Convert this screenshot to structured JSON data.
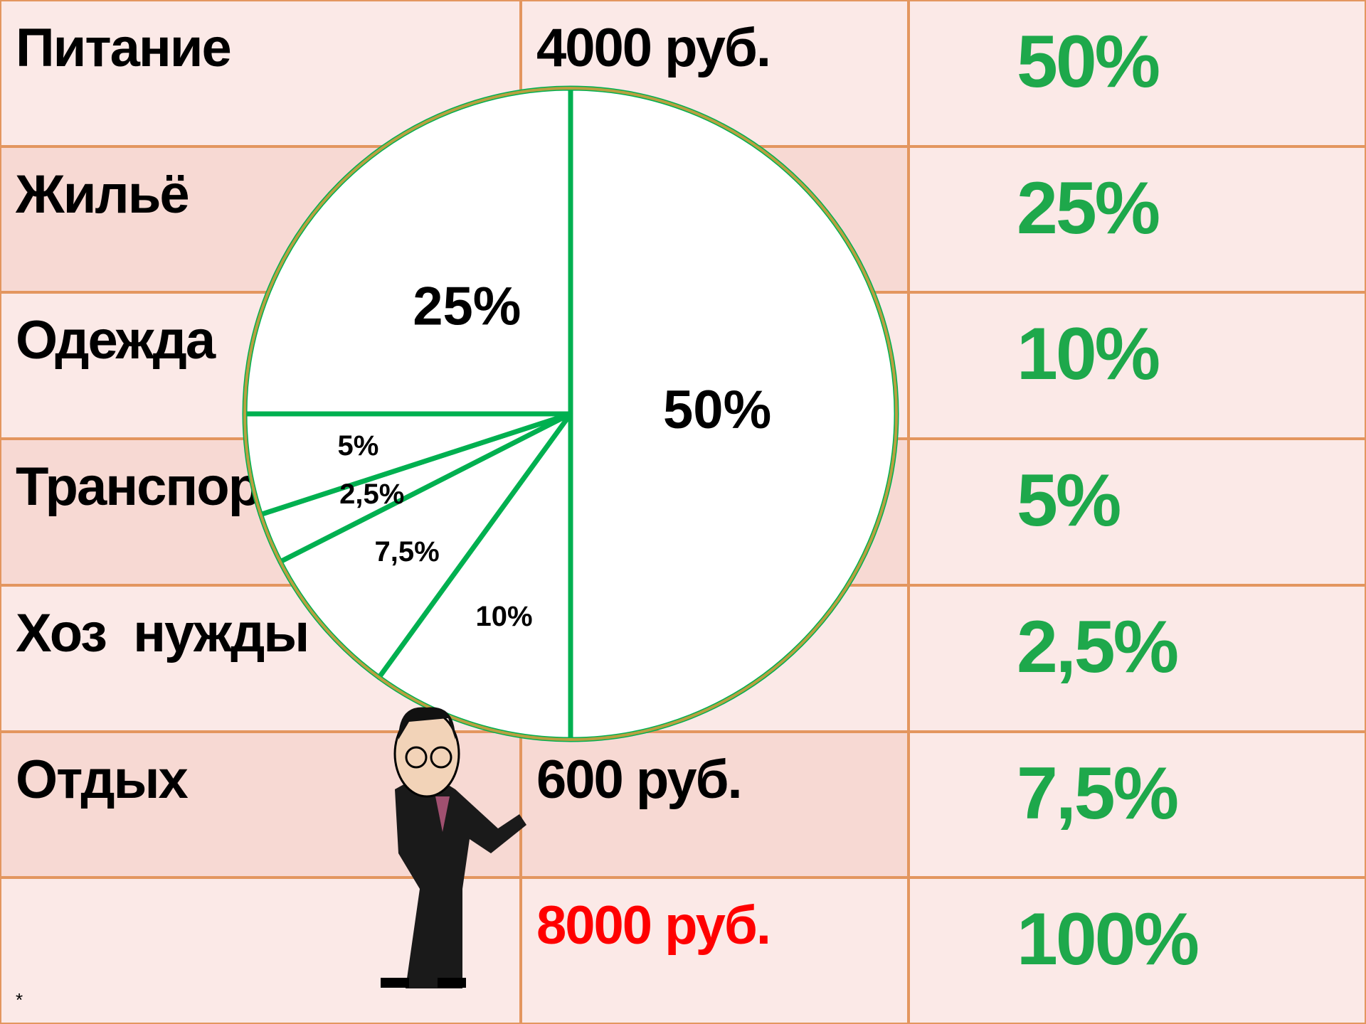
{
  "table": {
    "rows": [
      {
        "name": "Питание",
        "amount": "4000 руб.",
        "percent": "50%"
      },
      {
        "name": "Жильё",
        "percent": "25%"
      },
      {
        "name": "Одежда",
        "percent": "10%"
      },
      {
        "name": "Транспорт",
        "percent": "5%"
      },
      {
        "name": "Хоз  нужды",
        "percent": "2,5%"
      },
      {
        "name": "Отдых",
        "amount": "600 руб.",
        "percent": "7,5%"
      },
      {
        "name": "*",
        "amount": "8000 руб.",
        "percent": "100%"
      }
    ]
  },
  "chart_data": {
    "type": "pie",
    "values": [
      50,
      10,
      7.5,
      2.5,
      5,
      25
    ],
    "value_labels": [
      "50%",
      "10%",
      "7,5%",
      "2,5%",
      "5%",
      "25%"
    ],
    "color": "#00b050",
    "edge_color": "#b8a040"
  }
}
